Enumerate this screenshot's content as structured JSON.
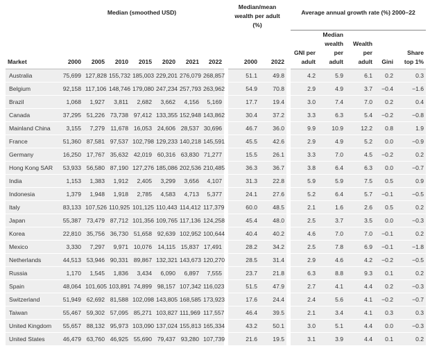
{
  "header": {
    "median_group": "Median (smoothed USD)",
    "ratio_group": "Median/mean wealth per adult (%)",
    "growth_group": "Average annual growth rate (%) 2000–22",
    "columns": [
      "Market",
      "2000",
      "2005",
      "2010",
      "2015",
      "2020",
      "2021",
      "2022",
      "2000",
      "2022",
      "GNI per adult",
      "Median wealth per adult",
      "Wealth per adult",
      "Gini",
      "Share top 1%"
    ]
  },
  "table": {
    "rows": [
      [
        "Australia",
        "75,699",
        "127,828",
        "155,732",
        "185,003",
        "229,201",
        "276,079",
        "268,857",
        "51.1",
        "49.8",
        "4.2",
        "5.9",
        "6.1",
        "0.2",
        "0.3"
      ],
      [
        "Belgium",
        "92,158",
        "117,106",
        "148,746",
        "179,080",
        "247,234",
        "257,793",
        "263,962",
        "54.9",
        "70.8",
        "2.9",
        "4.9",
        "3.7",
        "−0.4",
        "−1.6"
      ],
      [
        "Brazil",
        "1,068",
        "1,927",
        "3,811",
        "2,682",
        "3,662",
        "4,156",
        "5,169",
        "17.7",
        "19.4",
        "3.0",
        "7.4",
        "7.0",
        "0.2",
        "0.4"
      ],
      [
        "Canada",
        "37,295",
        "51,226",
        "73,738",
        "97,412",
        "133,355",
        "152,948",
        "143,862",
        "30.4",
        "37.2",
        "3.3",
        "6.3",
        "5.4",
        "−0.2",
        "−0.8"
      ],
      [
        "Mainland China",
        "3,155",
        "7,279",
        "11,678",
        "16,053",
        "24,606",
        "28,537",
        "30,696",
        "46.7",
        "36.0",
        "9.9",
        "10.9",
        "12.2",
        "0.8",
        "1.9"
      ],
      [
        "France",
        "51,360",
        "87,581",
        "97,537",
        "102,798",
        "129,233",
        "140,218",
        "145,591",
        "45.5",
        "42.6",
        "2.9",
        "4.9",
        "5.2",
        "0.0",
        "−0.9"
      ],
      [
        "Germany",
        "16,250",
        "17,767",
        "35,632",
        "42,019",
        "60,316",
        "63,830",
        "71,277",
        "15.5",
        "26.1",
        "3.3",
        "7.0",
        "4.5",
        "−0.2",
        "0.2"
      ],
      [
        "Hong Kong SAR",
        "53,933",
        "56,580",
        "87,190",
        "127,276",
        "185,086",
        "202,536",
        "210,485",
        "36.3",
        "36.7",
        "3.8",
        "6.4",
        "6.3",
        "0.0",
        "−0.7"
      ],
      [
        "India",
        "1,153",
        "1,383",
        "1,912",
        "2,405",
        "3,299",
        "3,656",
        "4,107",
        "31.3",
        "22.8",
        "5.9",
        "5.9",
        "7.5",
        "0.5",
        "0.9"
      ],
      [
        "Indonesia",
        "1,379",
        "1,948",
        "1,918",
        "2,785",
        "4,583",
        "4,713",
        "5,377",
        "24.1",
        "27.6",
        "5.2",
        "6.4",
        "5.7",
        "−0.1",
        "−0.5"
      ],
      [
        "Italy",
        "83,133",
        "107,526",
        "110,925",
        "101,125",
        "110,443",
        "114,412",
        "117,379",
        "60.0",
        "48.5",
        "2.1",
        "1.6",
        "2.6",
        "0.5",
        "0.2"
      ],
      [
        "Japan",
        "55,387",
        "73,479",
        "87,712",
        "101,356",
        "109,765",
        "117,136",
        "124,258",
        "45.4",
        "48.0",
        "2.5",
        "3.7",
        "3.5",
        "0.0",
        "−0.3"
      ],
      [
        "Korea",
        "22,810",
        "35,756",
        "36,730",
        "51,658",
        "92,639",
        "102,952",
        "100,644",
        "40.4",
        "40.2",
        "4.6",
        "7.0",
        "7.0",
        "−0.1",
        "0.2"
      ],
      [
        "Mexico",
        "3,330",
        "7,297",
        "9,971",
        "10,076",
        "14,115",
        "15,837",
        "17,491",
        "28.2",
        "34.2",
        "2.5",
        "7.8",
        "6.9",
        "−0.1",
        "−1.8"
      ],
      [
        "Netherlands",
        "44,513",
        "53,946",
        "90,331",
        "89,867",
        "132,321",
        "143,673",
        "120,270",
        "28.5",
        "31.4",
        "2.9",
        "4.6",
        "4.2",
        "−0.2",
        "−0.5"
      ],
      [
        "Russia",
        "1,170",
        "1,545",
        "1,836",
        "3,434",
        "6,090",
        "6,897",
        "7,555",
        "23.7",
        "21.8",
        "6.3",
        "8.8",
        "9.3",
        "0.1",
        "0.2"
      ],
      [
        "Spain",
        "48,064",
        "101,605",
        "103,891",
        "74,899",
        "98,157",
        "107,342",
        "116,023",
        "51.5",
        "47.9",
        "2.7",
        "4.1",
        "4.4",
        "0.2",
        "−0.3"
      ],
      [
        "Switzerland",
        "51,949",
        "62,692",
        "81,588",
        "102,098",
        "143,805",
        "168,585",
        "173,923",
        "17.6",
        "24.4",
        "2.4",
        "5.6",
        "4.1",
        "−0.2",
        "−0.7"
      ],
      [
        "Taiwan",
        "55,467",
        "59,302",
        "57,095",
        "85,271",
        "103,827",
        "111,969",
        "117,557",
        "46.4",
        "39.5",
        "2.1",
        "3.4",
        "4.1",
        "0.3",
        "0.3"
      ],
      [
        "United Kingdom",
        "55,657",
        "88,132",
        "95,973",
        "103,090",
        "137,024",
        "155,813",
        "165,334",
        "43.2",
        "50.1",
        "3.0",
        "5.1",
        "4.4",
        "0.0",
        "−0.3"
      ],
      [
        "United States",
        "46,479",
        "63,760",
        "46,925",
        "55,690",
        "79,437",
        "93,280",
        "107,739",
        "21.6",
        "19.5",
        "3.1",
        "3.9",
        "4.4",
        "0.1",
        "0.2"
      ]
    ]
  }
}
